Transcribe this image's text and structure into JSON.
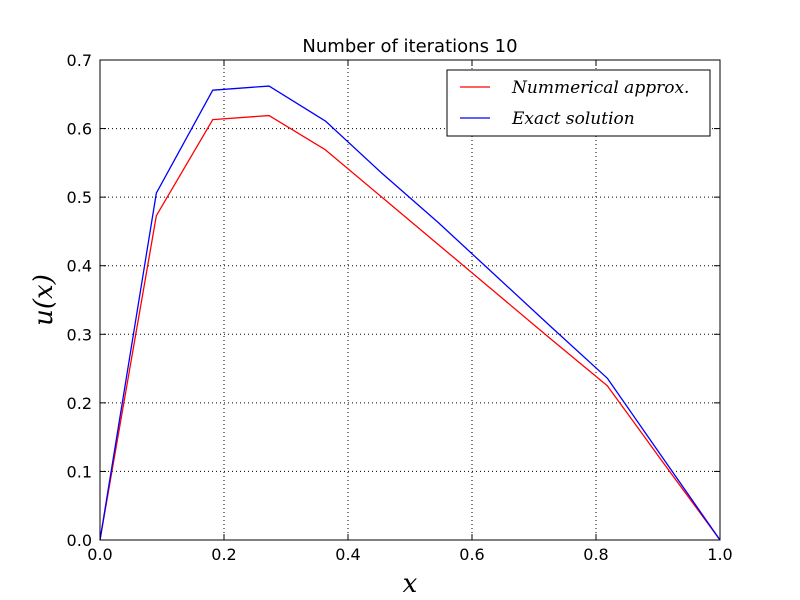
{
  "chart_data": {
    "type": "line",
    "title": "Number of iterations 10",
    "xlabel": "x",
    "ylabel": "u(x)",
    "xlim": [
      0.0,
      1.0
    ],
    "ylim": [
      0.0,
      0.7
    ],
    "x_ticks": [
      "0.0",
      "0.2",
      "0.4",
      "0.6",
      "0.8",
      "1.0"
    ],
    "y_ticks": [
      "0.0",
      "0.1",
      "0.2",
      "0.3",
      "0.4",
      "0.5",
      "0.6",
      "0.7"
    ],
    "grid": true,
    "legend_position": "top-right",
    "series": [
      {
        "name": "Nummerical approx.",
        "color": "#ff0000",
        "x": [
          0.0,
          0.0909,
          0.1818,
          0.2727,
          0.3636,
          0.4545,
          0.5455,
          0.6364,
          0.7273,
          0.8182,
          0.9091,
          1.0
        ],
        "y": [
          0.0,
          0.473,
          0.613,
          0.619,
          0.569,
          0.5,
          0.431,
          0.362,
          0.293,
          0.225,
          0.112,
          0.0
        ]
      },
      {
        "name": "Exact solution",
        "color": "#0000ff",
        "x": [
          0.0,
          0.0909,
          0.1818,
          0.2727,
          0.3636,
          0.4545,
          0.5455,
          0.6364,
          0.7273,
          0.8182,
          0.9091,
          1.0
        ],
        "y": [
          0.0,
          0.506,
          0.656,
          0.662,
          0.611,
          0.535,
          0.463,
          0.387,
          0.311,
          0.236,
          0.118,
          0.0
        ]
      }
    ]
  }
}
